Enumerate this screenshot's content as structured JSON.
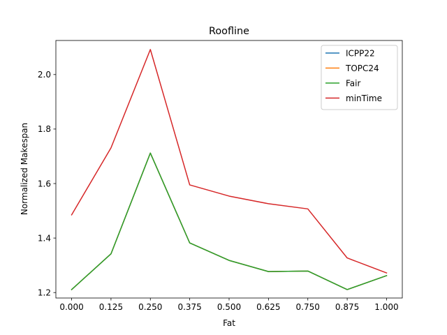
{
  "chart_data": {
    "type": "line",
    "title": "Roofline",
    "xlabel": "Fat",
    "ylabel": "Normalized Makespan",
    "x": [
      0.0,
      0.125,
      0.25,
      0.375,
      0.5,
      0.625,
      0.75,
      0.875,
      1.0
    ],
    "x_tick_labels": [
      "0.000",
      "0.125",
      "0.250",
      "0.375",
      "0.500",
      "0.625",
      "0.750",
      "0.875",
      "1.000"
    ],
    "y_ticks": [
      1.2,
      1.4,
      1.6,
      1.8,
      2.0
    ],
    "y_tick_labels": [
      "1.2",
      "1.4",
      "1.6",
      "1.8",
      "2.0"
    ],
    "xlim": [
      -0.05,
      1.05
    ],
    "ylim": [
      1.18,
      2.125
    ],
    "grid": false,
    "legend_position": "top-right",
    "series": [
      {
        "name": "ICPP22",
        "color": "#1f77b4",
        "values": [
          1.211,
          1.342,
          1.712,
          1.382,
          1.318,
          1.277,
          1.279,
          1.211,
          1.262
        ]
      },
      {
        "name": "TOPC24",
        "color": "#ff7f0e",
        "values": [
          1.211,
          1.342,
          1.712,
          1.382,
          1.318,
          1.277,
          1.279,
          1.211,
          1.262
        ]
      },
      {
        "name": "Fair",
        "color": "#2ca02c",
        "values": [
          1.211,
          1.342,
          1.712,
          1.382,
          1.318,
          1.277,
          1.279,
          1.211,
          1.262
        ]
      },
      {
        "name": "minTime",
        "color": "#d62728",
        "values": [
          1.485,
          1.731,
          2.092,
          1.595,
          1.554,
          1.526,
          1.507,
          1.327,
          1.272
        ]
      }
    ]
  }
}
